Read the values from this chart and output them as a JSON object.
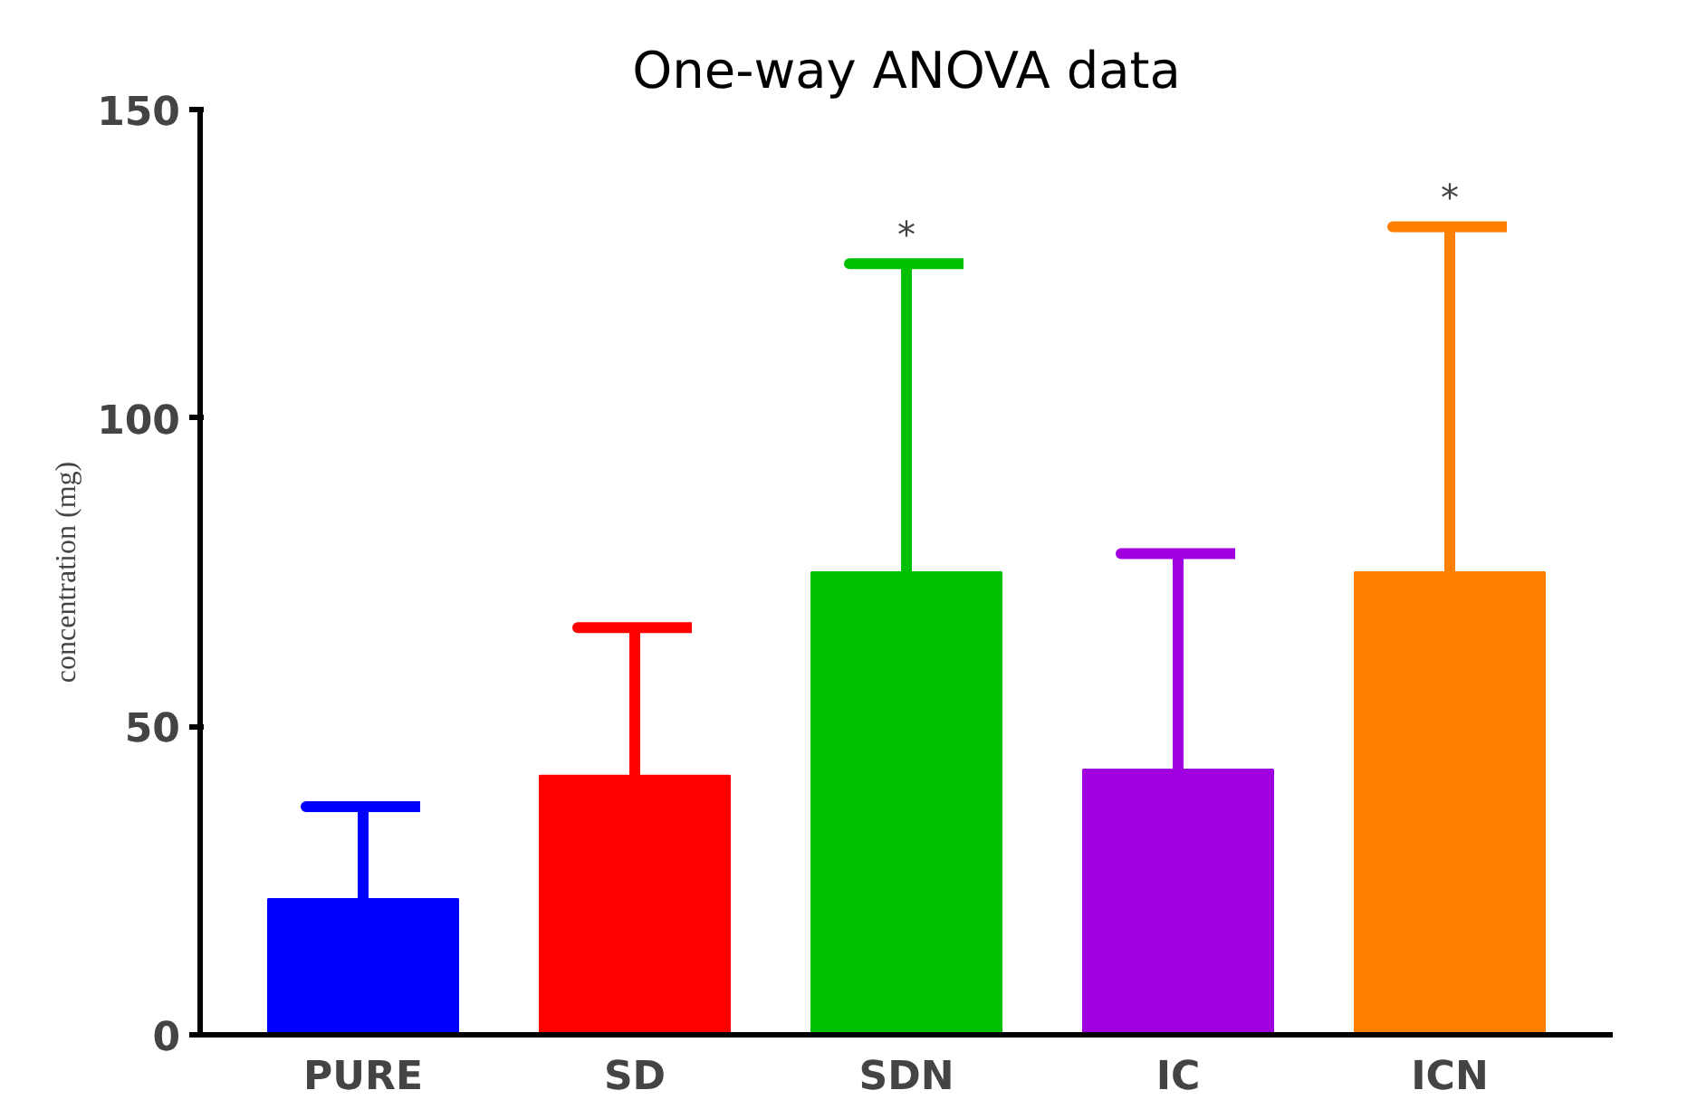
{
  "chart_data": {
    "type": "bar",
    "title": "One-way ANOVA data",
    "ylabel": "concentration (mg)",
    "categories": [
      "PURE",
      "SD",
      "SDN",
      "IC",
      "ICN"
    ],
    "values": [
      22,
      42,
      75,
      43,
      75
    ],
    "colors": [
      "#0000ff",
      "#ff0000",
      "#00c000",
      "#a000e0",
      "#ff8000"
    ],
    "errors": [
      [
        22,
        37
      ],
      [
        42,
        66
      ],
      [
        75,
        125
      ],
      [
        43,
        78
      ],
      [
        75,
        131
      ]
    ],
    "annotations": [
      {
        "text": "*",
        "x": "SDN",
        "y": 125
      },
      {
        "text": "*",
        "x": "ICN",
        "y": 131
      }
    ],
    "ylim": [
      0,
      150
    ],
    "yticks": [
      0,
      50,
      100,
      150
    ],
    "grid": false
  }
}
